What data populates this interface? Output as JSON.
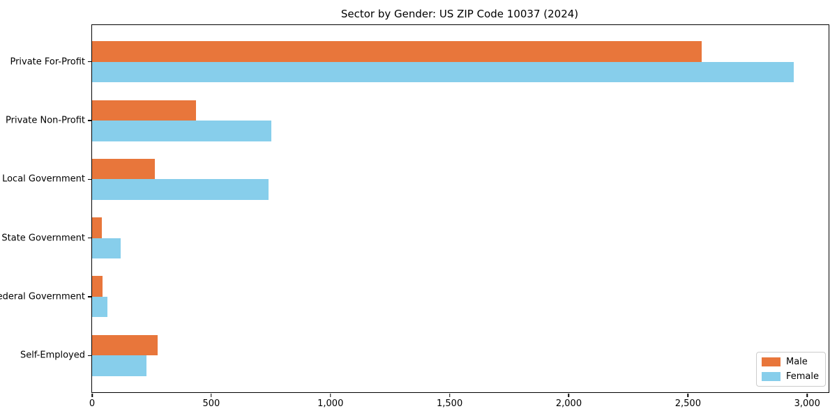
{
  "title": "Sector by Gender: US ZIP Code 10037 (2024)",
  "chart_data": {
    "type": "bar",
    "orientation": "horizontal",
    "title": "Sector by Gender: US ZIP Code 10037 (2024)",
    "categories": [
      "Private For-Profit",
      "Private Non-Profit",
      "Local Government",
      "State Government",
      "Federal Government",
      "Self-Employed"
    ],
    "series": [
      {
        "name": "Male",
        "color": "#e8763b",
        "values": [
          2556,
          435,
          264,
          42,
          45,
          274
        ]
      },
      {
        "name": "Female",
        "color": "#87ceeb",
        "values": [
          2944,
          753,
          740,
          120,
          63,
          229
        ]
      }
    ],
    "xlim": [
      0,
      3090
    ],
    "xticks": [
      0,
      500,
      1000,
      1500,
      2000,
      2500,
      3000
    ],
    "xtick_labels": [
      "0",
      "500",
      "1,000",
      "1,500",
      "2,000",
      "2,500",
      "3,000"
    ],
    "xlabel": "",
    "ylabel": "",
    "grid": false,
    "bar_height_fraction": 0.35,
    "legend": {
      "position": "lower right",
      "entries": [
        "Male",
        "Female"
      ]
    }
  }
}
